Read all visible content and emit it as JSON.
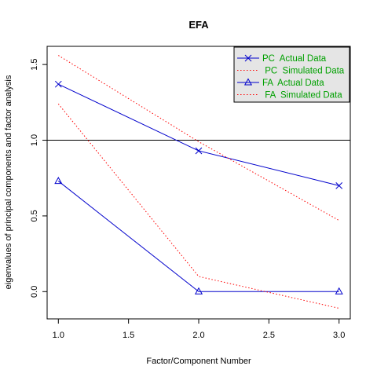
{
  "chart_data": {
    "type": "line",
    "title": "EFA",
    "xlabel": "Factor/Component Number",
    "ylabel": "eigenvalues of principal components and factor analysis",
    "xlim": [
      0.92,
      3.08
    ],
    "ylim": [
      -0.18,
      1.62
    ],
    "x_ticks": [
      "1.0",
      "1.5",
      "2.0",
      "2.5",
      "3.0"
    ],
    "y_ticks": [
      "0.0",
      "0.5",
      "1.0",
      "1.5"
    ],
    "x": [
      1,
      2,
      3
    ],
    "reference_line": 1.0,
    "legend_position": "top-right",
    "series": [
      {
        "name": "PC  Actual Data",
        "values": [
          1.37,
          0.93,
          0.7
        ],
        "color": "#0000cc",
        "line": "solid",
        "marker": "x"
      },
      {
        "name": " PC  Simulated Data",
        "values": [
          1.56,
          0.99,
          0.47
        ],
        "color": "#ff0000",
        "line": "dotted",
        "marker": "none"
      },
      {
        "name": "FA  Actual Data",
        "values": [
          0.73,
          0.0,
          0.0
        ],
        "color": "#0000cc",
        "line": "solid",
        "marker": "triangle"
      },
      {
        "name": " FA  Simulated Data",
        "values": [
          1.24,
          0.1,
          -0.11
        ],
        "color": "#ff0000",
        "line": "dotted",
        "marker": "none"
      }
    ],
    "legend_text_color": "#00a000",
    "legend_bg": "#e5e5e5"
  }
}
